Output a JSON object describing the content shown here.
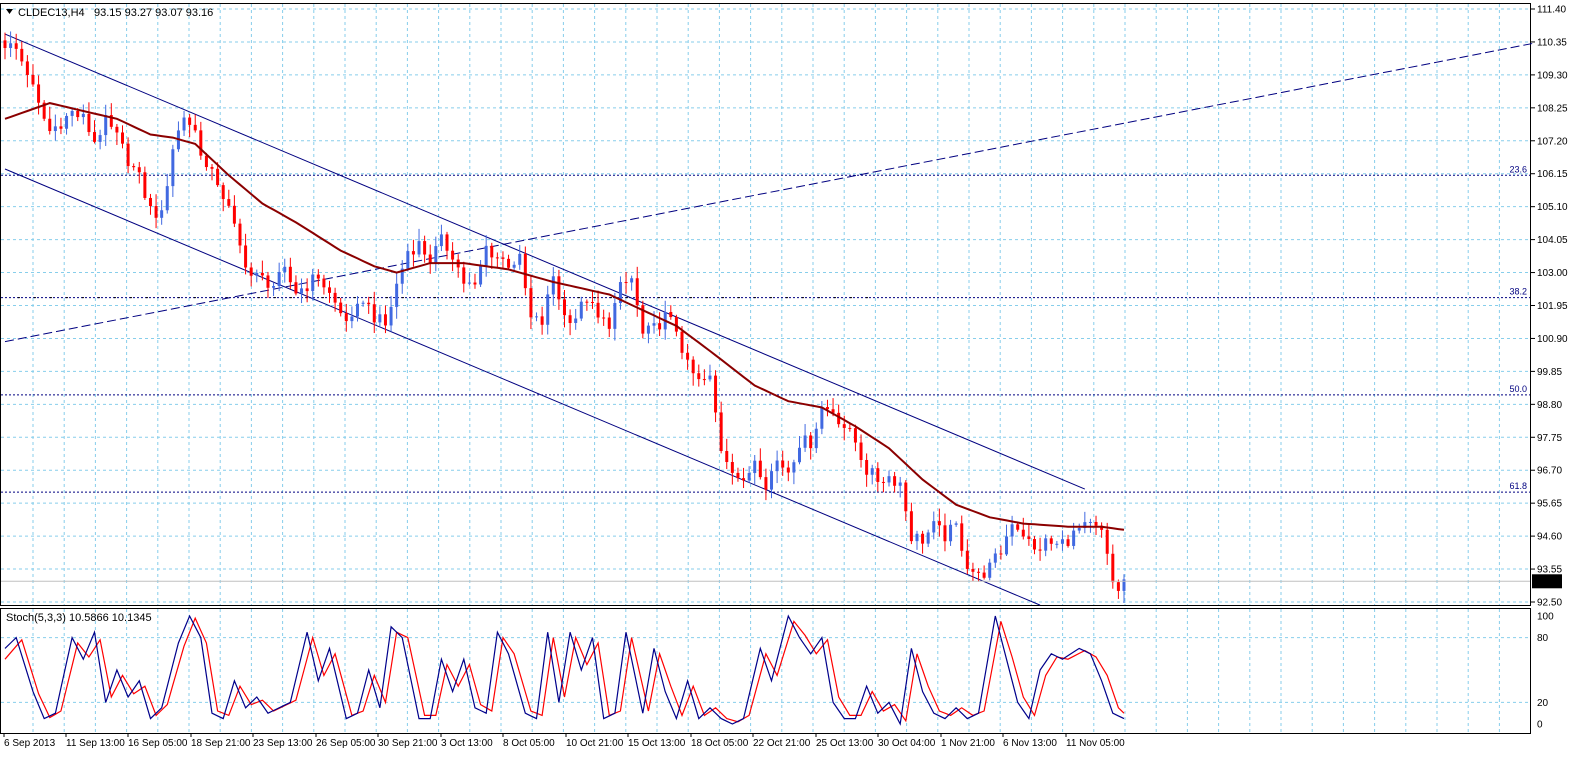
{
  "header": {
    "symbol": "CLDEC13,H4",
    "ohlc": "93.15 93.27 93.07 93.16"
  },
  "stoch": {
    "label": "Stoch(5,3,3) 10.5866 10.1345",
    "levels": [
      "100",
      "80",
      "20",
      "0"
    ]
  },
  "price_box": "93.16",
  "fib_labels": [
    "23.6",
    "38.2",
    "50.0",
    "61.8"
  ],
  "y_ticks": [
    "111.40",
    "110.35",
    "109.30",
    "108.25",
    "107.20",
    "106.15",
    "105.10",
    "104.05",
    "103.00",
    "101.95",
    "100.90",
    "99.85",
    "98.80",
    "97.75",
    "96.70",
    "95.65",
    "94.60",
    "93.55",
    "92.50"
  ],
  "x_ticks": [
    "6 Sep 2013",
    "11 Sep 13:00",
    "16 Sep 05:00",
    "18 Sep 21:00",
    "23 Sep 13:00",
    "26 Sep 05:00",
    "30 Sep 21:00",
    "3 Oct 13:00",
    "8 Oct 05:00",
    "10 Oct 21:00",
    "15 Oct 13:00",
    "18 Oct 05:00",
    "22 Oct 21:00",
    "25 Oct 13:00",
    "30 Oct 04:00",
    "1 Nov 21:00",
    "6 Nov 13:00",
    "11 Nov 05:00"
  ],
  "colors": {
    "bull": "#4169e1",
    "bear": "#ff0000",
    "ma": "#8b0000",
    "channel": "#000080",
    "grid": "#87ceeb",
    "stoch_k": "#00008b",
    "stoch_d": "#ff0000"
  },
  "chart_data": {
    "type": "candlestick",
    "title": "CLDEC13,H4",
    "ylim": [
      92.3,
      111.6
    ],
    "fib_levels": [
      {
        "label": "23.6",
        "price": 106.1
      },
      {
        "label": "38.2",
        "price": 102.2
      },
      {
        "label": "50.0",
        "price": 99.1
      },
      {
        "label": "61.8",
        "price": 96.0
      }
    ],
    "close_anchors": [
      [
        0,
        110.3
      ],
      [
        2,
        110.1
      ],
      [
        4,
        109.4
      ],
      [
        6,
        108.3
      ],
      [
        8,
        107.5
      ],
      [
        10,
        107.8
      ],
      [
        12,
        108.1
      ],
      [
        14,
        107.9
      ],
      [
        16,
        107.2
      ],
      [
        18,
        107.8
      ],
      [
        20,
        107.3
      ],
      [
        22,
        106.6
      ],
      [
        24,
        106.0
      ],
      [
        26,
        105.0
      ],
      [
        28,
        104.8
      ],
      [
        30,
        107.0
      ],
      [
        32,
        108.0
      ],
      [
        34,
        107.5
      ],
      [
        36,
        106.3
      ],
      [
        38,
        105.9
      ],
      [
        40,
        105.0
      ],
      [
        42,
        103.8
      ],
      [
        44,
        102.9
      ],
      [
        46,
        102.8
      ],
      [
        48,
        102.6
      ],
      [
        50,
        103.0
      ],
      [
        52,
        102.4
      ],
      [
        54,
        102.6
      ],
      [
        56,
        102.9
      ],
      [
        58,
        102.3
      ],
      [
        60,
        101.7
      ],
      [
        62,
        101.4
      ],
      [
        64,
        102.2
      ],
      [
        66,
        101.6
      ],
      [
        68,
        101.3
      ],
      [
        70,
        102.6
      ],
      [
        72,
        103.7
      ],
      [
        74,
        103.9
      ],
      [
        76,
        103.4
      ],
      [
        78,
        104.0
      ],
      [
        80,
        103.6
      ],
      [
        82,
        102.7
      ],
      [
        84,
        102.5
      ],
      [
        86,
        103.8
      ],
      [
        88,
        103.5
      ],
      [
        90,
        103.3
      ],
      [
        92,
        103.4
      ],
      [
        94,
        101.5
      ],
      [
        96,
        101.4
      ],
      [
        98,
        102.9
      ],
      [
        100,
        101.6
      ],
      [
        102,
        101.6
      ],
      [
        104,
        102.2
      ],
      [
        106,
        101.5
      ],
      [
        108,
        101.4
      ],
      [
        110,
        102.5
      ],
      [
        112,
        102.8
      ],
      [
        114,
        101.0
      ],
      [
        116,
        101.2
      ],
      [
        118,
        101.6
      ],
      [
        120,
        101.2
      ],
      [
        122,
        100.0
      ],
      [
        124,
        99.5
      ],
      [
        126,
        99.6
      ],
      [
        128,
        97.4
      ],
      [
        130,
        96.8
      ],
      [
        132,
        96.2
      ],
      [
        134,
        97.1
      ],
      [
        136,
        96.3
      ],
      [
        138,
        97.0
      ],
      [
        140,
        96.7
      ],
      [
        142,
        97.6
      ],
      [
        144,
        97.6
      ],
      [
        146,
        98.7
      ],
      [
        148,
        98.6
      ],
      [
        150,
        98.1
      ],
      [
        152,
        97.6
      ],
      [
        154,
        96.7
      ],
      [
        156,
        96.4
      ],
      [
        158,
        96.5
      ],
      [
        160,
        96.3
      ],
      [
        162,
        94.6
      ],
      [
        164,
        94.5
      ],
      [
        166,
        94.9
      ],
      [
        168,
        94.6
      ],
      [
        170,
        94.9
      ],
      [
        172,
        93.7
      ],
      [
        174,
        93.3
      ],
      [
        176,
        93.6
      ],
      [
        178,
        94.1
      ],
      [
        180,
        95.1
      ],
      [
        182,
        94.7
      ],
      [
        184,
        94.1
      ],
      [
        186,
        94.4
      ],
      [
        188,
        94.3
      ],
      [
        190,
        94.5
      ],
      [
        192,
        94.8
      ],
      [
        194,
        94.9
      ],
      [
        196,
        94.7
      ],
      [
        198,
        93.1
      ],
      [
        199,
        92.9
      ],
      [
        200,
        93.16
      ]
    ],
    "ma_points": [
      [
        0,
        107.9
      ],
      [
        8,
        108.4
      ],
      [
        20,
        107.9
      ],
      [
        26,
        107.4
      ],
      [
        30,
        107.3
      ],
      [
        34,
        107.1
      ],
      [
        40,
        106.1
      ],
      [
        46,
        105.2
      ],
      [
        52,
        104.6
      ],
      [
        60,
        103.7
      ],
      [
        66,
        103.2
      ],
      [
        70,
        103.0
      ],
      [
        76,
        103.3
      ],
      [
        82,
        103.3
      ],
      [
        90,
        103.1
      ],
      [
        98,
        102.7
      ],
      [
        108,
        102.3
      ],
      [
        114,
        101.8
      ],
      [
        120,
        101.3
      ],
      [
        126,
        100.5
      ],
      [
        134,
        99.4
      ],
      [
        140,
        98.9
      ],
      [
        146,
        98.7
      ],
      [
        152,
        98.1
      ],
      [
        158,
        97.4
      ],
      [
        164,
        96.4
      ],
      [
        170,
        95.6
      ],
      [
        176,
        95.2
      ],
      [
        182,
        95.0
      ],
      [
        190,
        94.9
      ],
      [
        196,
        94.9
      ],
      [
        200,
        94.8
      ]
    ],
    "channel_upper": [
      [
        0,
        110.6
      ],
      [
        193,
        96.1
      ]
    ],
    "channel_lower": [
      [
        0,
        106.3
      ],
      [
        185,
        92.4
      ]
    ],
    "trend_line": [
      [
        0,
        100.8
      ],
      [
        273,
        110.3
      ]
    ],
    "stoch_k_anchors": [
      [
        0,
        70
      ],
      [
        2,
        80
      ],
      [
        5,
        30
      ],
      [
        7,
        5
      ],
      [
        9,
        10
      ],
      [
        12,
        80
      ],
      [
        14,
        60
      ],
      [
        16,
        85
      ],
      [
        18,
        20
      ],
      [
        20,
        50
      ],
      [
        22,
        25
      ],
      [
        24,
        40
      ],
      [
        26,
        5
      ],
      [
        28,
        15
      ],
      [
        31,
        75
      ],
      [
        33,
        100
      ],
      [
        35,
        80
      ],
      [
        37,
        10
      ],
      [
        39,
        5
      ],
      [
        41,
        40
      ],
      [
        43,
        15
      ],
      [
        45,
        25
      ],
      [
        47,
        10
      ],
      [
        51,
        20
      ],
      [
        54,
        85
      ],
      [
        56,
        40
      ],
      [
        58,
        70
      ],
      [
        61,
        5
      ],
      [
        63,
        10
      ],
      [
        65,
        50
      ],
      [
        67,
        15
      ],
      [
        69,
        90
      ],
      [
        71,
        80
      ],
      [
        74,
        5
      ],
      [
        76,
        5
      ],
      [
        78,
        60
      ],
      [
        80,
        30
      ],
      [
        82,
        60
      ],
      [
        84,
        15
      ],
      [
        86,
        10
      ],
      [
        88,
        85
      ],
      [
        90,
        65
      ],
      [
        93,
        10
      ],
      [
        95,
        5
      ],
      [
        97,
        85
      ],
      [
        99,
        20
      ],
      [
        101,
        85
      ],
      [
        103,
        50
      ],
      [
        105,
        80
      ],
      [
        107,
        5
      ],
      [
        109,
        10
      ],
      [
        111,
        85
      ],
      [
        114,
        10
      ],
      [
        116,
        70
      ],
      [
        118,
        30
      ],
      [
        120,
        5
      ],
      [
        122,
        40
      ],
      [
        124,
        5
      ],
      [
        126,
        15
      ],
      [
        128,
        5
      ],
      [
        130,
        0
      ],
      [
        132,
        5
      ],
      [
        135,
        70
      ],
      [
        137,
        40
      ],
      [
        140,
        100
      ],
      [
        142,
        80
      ],
      [
        144,
        65
      ],
      [
        146,
        80
      ],
      [
        148,
        20
      ],
      [
        150,
        5
      ],
      [
        152,
        5
      ],
      [
        154,
        35
      ],
      [
        156,
        10
      ],
      [
        158,
        20
      ],
      [
        160,
        0
      ],
      [
        162,
        70
      ],
      [
        164,
        30
      ],
      [
        166,
        10
      ],
      [
        168,
        5
      ],
      [
        170,
        15
      ],
      [
        172,
        5
      ],
      [
        174,
        10
      ],
      [
        177,
        100
      ],
      [
        179,
        60
      ],
      [
        181,
        20
      ],
      [
        183,
        5
      ],
      [
        185,
        50
      ],
      [
        187,
        65
      ],
      [
        189,
        60
      ],
      [
        192,
        70
      ],
      [
        194,
        65
      ],
      [
        196,
        40
      ],
      [
        198,
        10
      ],
      [
        200,
        5
      ]
    ],
    "stoch_d_anchors": [
      [
        0,
        60
      ],
      [
        3,
        78
      ],
      [
        6,
        28
      ],
      [
        8,
        6
      ],
      [
        10,
        12
      ],
      [
        13,
        75
      ],
      [
        15,
        62
      ],
      [
        17,
        78
      ],
      [
        19,
        25
      ],
      [
        21,
        45
      ],
      [
        23,
        28
      ],
      [
        25,
        35
      ],
      [
        27,
        8
      ],
      [
        29,
        18
      ],
      [
        32,
        72
      ],
      [
        34,
        98
      ],
      [
        36,
        75
      ],
      [
        38,
        12
      ],
      [
        40,
        8
      ],
      [
        42,
        35
      ],
      [
        44,
        18
      ],
      [
        46,
        22
      ],
      [
        48,
        12
      ],
      [
        52,
        22
      ],
      [
        55,
        80
      ],
      [
        57,
        45
      ],
      [
        59,
        65
      ],
      [
        62,
        8
      ],
      [
        64,
        12
      ],
      [
        66,
        45
      ],
      [
        68,
        20
      ],
      [
        70,
        85
      ],
      [
        72,
        80
      ],
      [
        75,
        8
      ],
      [
        77,
        8
      ],
      [
        79,
        55
      ],
      [
        81,
        35
      ],
      [
        83,
        55
      ],
      [
        85,
        18
      ],
      [
        87,
        12
      ],
      [
        89,
        80
      ],
      [
        91,
        65
      ],
      [
        94,
        12
      ],
      [
        96,
        8
      ],
      [
        98,
        80
      ],
      [
        100,
        25
      ],
      [
        102,
        80
      ],
      [
        104,
        55
      ],
      [
        106,
        75
      ],
      [
        108,
        8
      ],
      [
        110,
        12
      ],
      [
        112,
        80
      ],
      [
        115,
        12
      ],
      [
        117,
        65
      ],
      [
        119,
        35
      ],
      [
        121,
        8
      ],
      [
        123,
        35
      ],
      [
        125,
        8
      ],
      [
        127,
        15
      ],
      [
        129,
        5
      ],
      [
        131,
        2
      ],
      [
        133,
        8
      ],
      [
        136,
        65
      ],
      [
        138,
        45
      ],
      [
        141,
        95
      ],
      [
        143,
        82
      ],
      [
        145,
        65
      ],
      [
        147,
        78
      ],
      [
        149,
        25
      ],
      [
        151,
        8
      ],
      [
        153,
        8
      ],
      [
        155,
        30
      ],
      [
        157,
        12
      ],
      [
        159,
        18
      ],
      [
        161,
        3
      ],
      [
        163,
        65
      ],
      [
        165,
        35
      ],
      [
        167,
        12
      ],
      [
        169,
        8
      ],
      [
        171,
        15
      ],
      [
        173,
        8
      ],
      [
        175,
        12
      ],
      [
        178,
        95
      ],
      [
        180,
        62
      ],
      [
        182,
        25
      ],
      [
        184,
        8
      ],
      [
        186,
        45
      ],
      [
        188,
        62
      ],
      [
        190,
        60
      ],
      [
        193,
        68
      ],
      [
        195,
        62
      ],
      [
        197,
        45
      ],
      [
        199,
        15
      ],
      [
        200,
        10
      ]
    ]
  }
}
